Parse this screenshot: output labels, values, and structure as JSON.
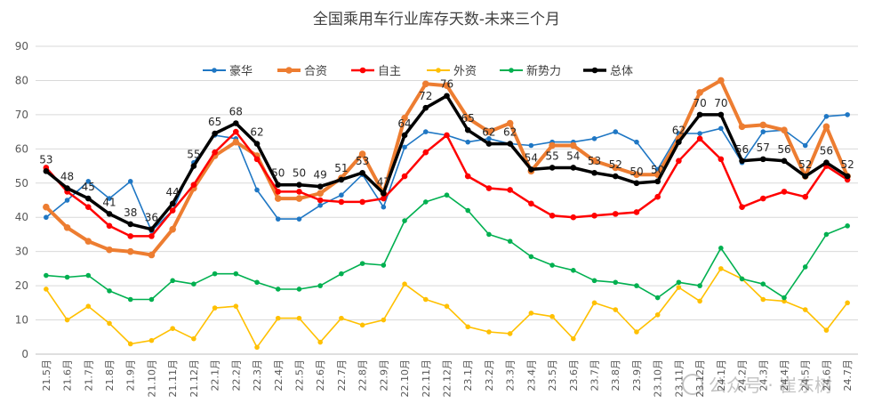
{
  "chart_data": {
    "type": "line",
    "title": "全国乘用车行业库存天数-未来三个月",
    "ylim": [
      0,
      90
    ],
    "yticks": [
      0,
      10,
      20,
      30,
      40,
      50,
      60,
      70,
      80,
      90
    ],
    "grid": "horizontal",
    "legend_position": "top",
    "categories": [
      "21.5月",
      "21.6月",
      "21.7月",
      "21.8月",
      "21.9月",
      "21.10月",
      "21.11月",
      "21.12月",
      "22.1月",
      "22.2月",
      "22.3月",
      "22.4月",
      "22.5月",
      "22.6月",
      "22.7月",
      "22.8月",
      "22.9月",
      "22.10月",
      "22.11月",
      "22.12月",
      "23.1月",
      "23.2月",
      "23.3月",
      "23.4月",
      "23.5月",
      "23.6月",
      "23.7月",
      "23.8月",
      "23.9月",
      "23.10月",
      "23.11月",
      "23.12月",
      "24.1月",
      "24.2月",
      "24.3月",
      "24.4月",
      "24.5月",
      "24.6月",
      "24.7月"
    ],
    "series": [
      {
        "name": "豪华",
        "color": "#1f77c4",
        "width": 1.6,
        "marker": 4,
        "values": [
          40,
          45,
          50.5,
          45.5,
          50.5,
          36,
          42,
          56,
          64,
          63,
          48,
          39.5,
          39.5,
          43.5,
          46.5,
          52.5,
          43,
          60.5,
          65,
          64,
          62,
          63,
          61.5,
          61,
          62,
          62,
          63,
          65,
          62,
          54,
          64.5,
          64.5,
          66,
          56,
          65,
          65.5,
          61,
          69.5,
          70
        ]
      },
      {
        "name": "合资",
        "color": "#ed7d31",
        "width": 4,
        "marker": 6,
        "values": [
          43,
          37,
          33,
          30.5,
          30,
          29,
          36.5,
          48.5,
          58,
          62,
          58,
          45.5,
          45.5,
          47,
          51.5,
          58.5,
          47,
          69,
          79,
          78.5,
          69,
          65,
          67.5,
          53.5,
          61,
          61,
          56.5,
          54.5,
          52.5,
          52.5,
          63,
          76.5,
          80,
          66.5,
          67,
          65.5,
          52,
          66.5,
          52
        ]
      },
      {
        "name": "自主",
        "color": "#ff0000",
        "width": 2.5,
        "marker": 5,
        "values": [
          54.5,
          47.5,
          43,
          37.5,
          34.5,
          34.5,
          42,
          49.5,
          59,
          65,
          57,
          47.5,
          47.5,
          45,
          44.5,
          44.5,
          45.5,
          52,
          59,
          64,
          52,
          48.5,
          48,
          44,
          40.5,
          40,
          40.5,
          41,
          41.5,
          46,
          56.5,
          63,
          57,
          43,
          45.5,
          47.5,
          46,
          55,
          51
        ]
      },
      {
        "name": "外资",
        "color": "#ffc000",
        "width": 1.6,
        "marker": 4,
        "values": [
          19,
          10,
          14,
          9,
          3,
          4,
          7.5,
          4.5,
          13.5,
          14,
          2,
          10.5,
          10.5,
          3.5,
          10.5,
          8.5,
          10,
          20.5,
          16,
          14,
          8,
          6.5,
          6,
          12,
          11,
          4.5,
          15,
          13,
          6.5,
          11.5,
          19.5,
          15.5,
          25,
          22,
          16,
          15.5,
          13,
          7,
          15
        ]
      },
      {
        "name": "新势力",
        "color": "#00b050",
        "width": 1.6,
        "marker": 4,
        "values": [
          23,
          22.5,
          23,
          18.5,
          16,
          16,
          21.5,
          20.5,
          23.5,
          23.5,
          21,
          19,
          19,
          20,
          23.5,
          26.5,
          26,
          39,
          44.5,
          46.5,
          42,
          35,
          33,
          28.5,
          26,
          24.5,
          21.5,
          21,
          20,
          16.5,
          21,
          20,
          31,
          22,
          20.5,
          16.5,
          25.5,
          35,
          37.5
        ]
      },
      {
        "name": "总体",
        "color": "#000000",
        "width": 3.5,
        "marker": 5,
        "values": [
          53.5,
          48.5,
          45.5,
          41,
          38,
          36.5,
          44,
          55,
          64.5,
          67.5,
          61.5,
          49.5,
          49.5,
          49,
          51,
          53,
          47,
          64,
          72,
          75.5,
          65.5,
          61.5,
          61.5,
          54,
          54.5,
          54.5,
          53,
          52,
          50,
          50.5,
          62,
          70,
          70,
          56.5,
          57,
          56.5,
          52,
          56,
          52
        ]
      }
    ],
    "data_labels": {
      "series": "总体",
      "values": [
        "53",
        "48",
        "45",
        "41",
        "38",
        "36",
        "44",
        "55",
        "65",
        "68",
        "62",
        "50",
        "50",
        "49",
        "51",
        "53",
        "47",
        "64",
        "72",
        "76",
        "65",
        "62",
        "62",
        "54",
        "55",
        "54",
        "53",
        "52",
        "50",
        "50",
        "62",
        "70",
        "70",
        "56",
        "57",
        "56",
        "52",
        "56",
        "52"
      ]
    }
  },
  "watermark": "公众号 · 崔东树"
}
